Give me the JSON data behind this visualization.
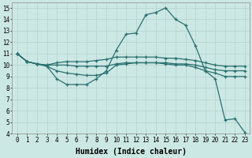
{
  "xlabel": "Humidex (Indice chaleur)",
  "xlim": [
    -0.5,
    23.5
  ],
  "ylim": [
    4,
    15.5
  ],
  "xticks": [
    0,
    1,
    2,
    3,
    4,
    5,
    6,
    7,
    8,
    9,
    10,
    11,
    12,
    13,
    14,
    15,
    16,
    17,
    18,
    19,
    20,
    21,
    22,
    23
  ],
  "yticks": [
    4,
    5,
    6,
    7,
    8,
    9,
    10,
    11,
    12,
    13,
    14,
    15
  ],
  "bg_color": "#cce8e4",
  "grid_color": "#b8d8d4",
  "line_color": "#2a7070",
  "line1_x": [
    0,
    1,
    2,
    3,
    4,
    5,
    6,
    7,
    8,
    9,
    10,
    11,
    12,
    13,
    14,
    15,
    16,
    17,
    18,
    19,
    20,
    21,
    22,
    23
  ],
  "line1_y": [
    11.0,
    10.3,
    10.1,
    9.9,
    8.8,
    8.3,
    8.3,
    8.3,
    8.8,
    9.5,
    11.3,
    12.7,
    12.8,
    14.4,
    14.6,
    15.0,
    14.0,
    13.5,
    11.7,
    9.5,
    8.8,
    5.2,
    5.3,
    4.1
  ],
  "line2_x": [
    0,
    1,
    2,
    3,
    4,
    5,
    6,
    7,
    8,
    9,
    10,
    11,
    12,
    13,
    14,
    15,
    16,
    17,
    18,
    19,
    20,
    21,
    22,
    23
  ],
  "line2_y": [
    11.0,
    10.3,
    10.1,
    9.9,
    9.5,
    9.3,
    9.2,
    9.1,
    9.1,
    9.3,
    10.0,
    10.1,
    10.2,
    10.2,
    10.2,
    10.1,
    10.0,
    10.0,
    9.8,
    9.5,
    9.3,
    9.0,
    9.0,
    9.0
  ],
  "line3_x": [
    0,
    1,
    2,
    3,
    4,
    5,
    6,
    7,
    8,
    9,
    10,
    11,
    12,
    13,
    14,
    15,
    16,
    17,
    18,
    19,
    20,
    21,
    22,
    23
  ],
  "line3_y": [
    11.0,
    10.3,
    10.1,
    10.0,
    10.0,
    10.0,
    9.9,
    9.9,
    9.9,
    9.9,
    10.1,
    10.2,
    10.2,
    10.2,
    10.2,
    10.2,
    10.1,
    10.1,
    10.0,
    9.8,
    9.6,
    9.5,
    9.5,
    9.5
  ],
  "line4_x": [
    0,
    1,
    2,
    3,
    4,
    5,
    6,
    7,
    8,
    9,
    10,
    11,
    12,
    13,
    14,
    15,
    16,
    17,
    18,
    19,
    20,
    21,
    22,
    23
  ],
  "line4_y": [
    11.0,
    10.3,
    10.1,
    10.0,
    10.2,
    10.3,
    10.3,
    10.3,
    10.4,
    10.5,
    10.7,
    10.7,
    10.7,
    10.7,
    10.7,
    10.6,
    10.6,
    10.5,
    10.4,
    10.2,
    10.0,
    9.9,
    9.9,
    9.9
  ]
}
